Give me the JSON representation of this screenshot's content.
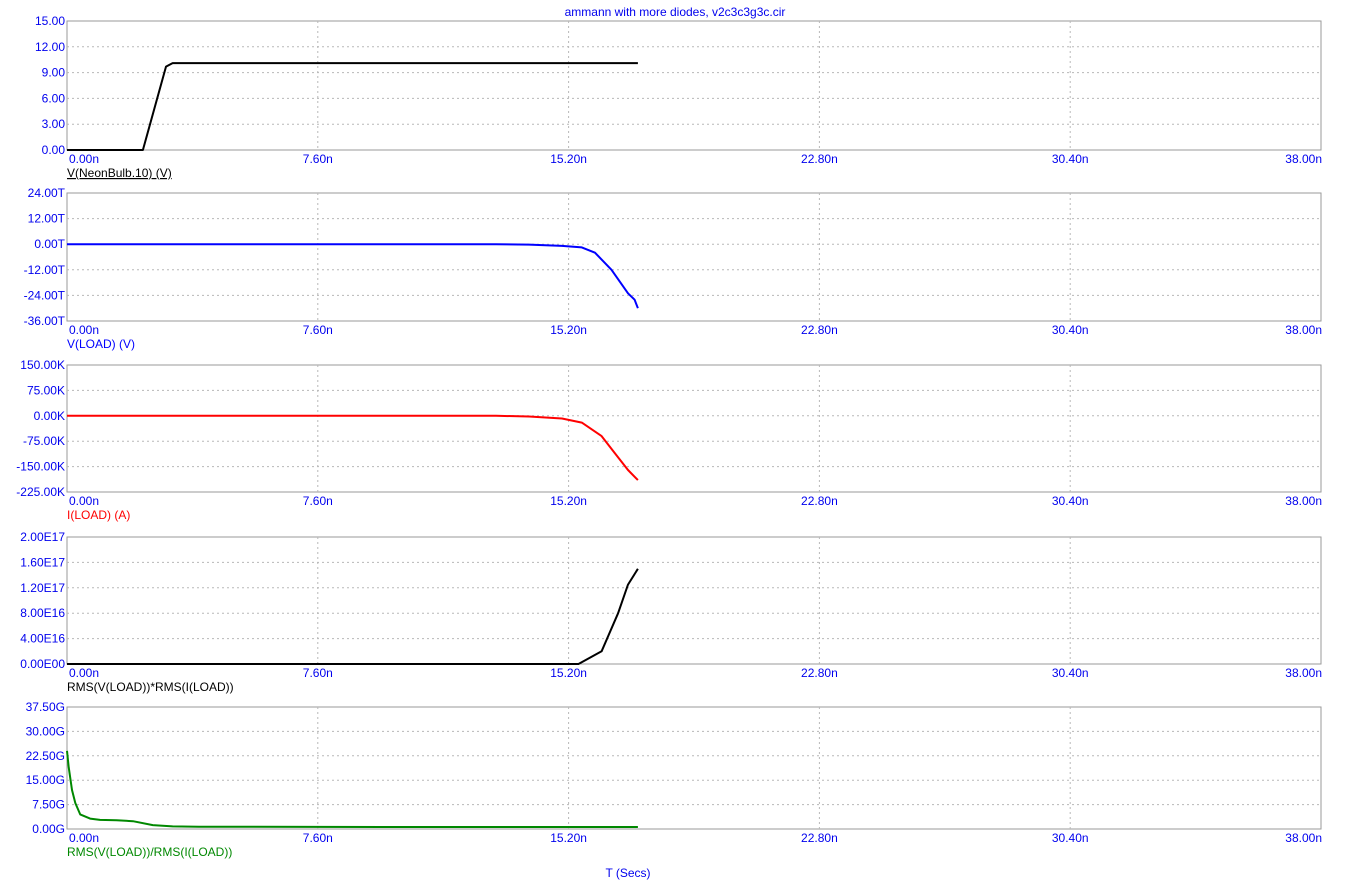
{
  "title": "ammann with more diodes, v2c3c3g3c.cir",
  "x_axis_label": "T (Secs)",
  "colors": {
    "axis_text": "#0000ee",
    "grid": "#b8b8b8",
    "frame": "#9a9a9a"
  },
  "chart_data": [
    {
      "type": "line",
      "name": "V(NeonBulb.10) (V)",
      "color": "#000000",
      "x_ticks": [
        "0.00n",
        "7.60n",
        "15.20n",
        "22.80n",
        "30.40n",
        "38.00n"
      ],
      "xlim": [
        0,
        38
      ],
      "y_ticks": [
        "0.00",
        "3.00",
        "6.00",
        "9.00",
        "12.00",
        "15.00"
      ],
      "ylim": [
        0,
        15
      ],
      "x": [
        0,
        2.3,
        3.0,
        3.2,
        3.5,
        17.3
      ],
      "y": [
        0,
        0,
        9.7,
        10.1,
        10.1,
        10.1
      ]
    },
    {
      "type": "line",
      "name": "V(LOAD) (V)",
      "color": "#0000ff",
      "x_ticks": [
        "0.00n",
        "7.60n",
        "15.20n",
        "22.80n",
        "30.40n",
        "38.00n"
      ],
      "xlim": [
        0,
        38
      ],
      "y_ticks": [
        "-36.00T",
        "-24.00T",
        "-12.00T",
        "0.00T",
        "12.00T",
        "24.00T"
      ],
      "ylim": [
        -36,
        24
      ],
      "x": [
        0,
        13.0,
        14.0,
        15.0,
        15.6,
        16.0,
        16.5,
        17.0,
        17.2,
        17.3
      ],
      "y": [
        0,
        0,
        -0.2,
        -0.8,
        -1.5,
        -4.0,
        -12.0,
        -23.0,
        -26.0,
        -30.0
      ]
    },
    {
      "type": "line",
      "name": "I(LOAD) (A)",
      "color": "#ff0000",
      "x_ticks": [
        "0.00n",
        "7.60n",
        "15.20n",
        "22.80n",
        "30.40n",
        "38.00n"
      ],
      "xlim": [
        0,
        38
      ],
      "y_ticks": [
        "-225.00K",
        "-150.00K",
        "-75.00K",
        "0.00K",
        "75.00K",
        "150.00K"
      ],
      "ylim": [
        -225,
        150
      ],
      "x": [
        0,
        13.0,
        14.0,
        15.0,
        15.6,
        16.2,
        16.6,
        17.0,
        17.3
      ],
      "y": [
        0,
        0,
        -2.0,
        -8.0,
        -20.0,
        -60.0,
        -110.0,
        -160.0,
        -190.0
      ]
    },
    {
      "type": "line",
      "name": "RMS(V(LOAD))*RMS(I(LOAD))",
      "color": "#000000",
      "x_ticks": [
        "0.00n",
        "7.60n",
        "15.20n",
        "22.80n",
        "30.40n",
        "38.00n"
      ],
      "xlim": [
        0,
        38
      ],
      "y_ticks": [
        "0.00E00",
        "4.00E16",
        "8.00E16",
        "1.20E17",
        "1.60E17",
        "2.00E17"
      ],
      "ylim": [
        0,
        20
      ],
      "x": [
        0,
        15.5,
        16.2,
        16.7,
        17.0,
        17.3
      ],
      "y": [
        0,
        0,
        2.0,
        8.0,
        12.5,
        15.0
      ]
    },
    {
      "type": "line",
      "name": "RMS(V(LOAD))/RMS(I(LOAD))",
      "color": "#008800",
      "x_ticks": [
        "0.00n",
        "7.60n",
        "15.20n",
        "22.80n",
        "30.40n",
        "38.00n"
      ],
      "xlim": [
        0,
        38
      ],
      "y_ticks": [
        "0.00G",
        "7.50G",
        "15.00G",
        "22.50G",
        "30.00G",
        "37.50G"
      ],
      "ylim": [
        0,
        37.5
      ],
      "x": [
        0,
        0.05,
        0.15,
        0.25,
        0.4,
        0.7,
        1.0,
        1.5,
        2.0,
        2.6,
        3.2,
        4.0,
        10.0,
        17.3
      ],
      "y": [
        24.0,
        19.0,
        12.0,
        8.0,
        4.5,
        3.2,
        2.8,
        2.7,
        2.4,
        1.2,
        0.8,
        0.7,
        0.6,
        0.6
      ]
    }
  ]
}
